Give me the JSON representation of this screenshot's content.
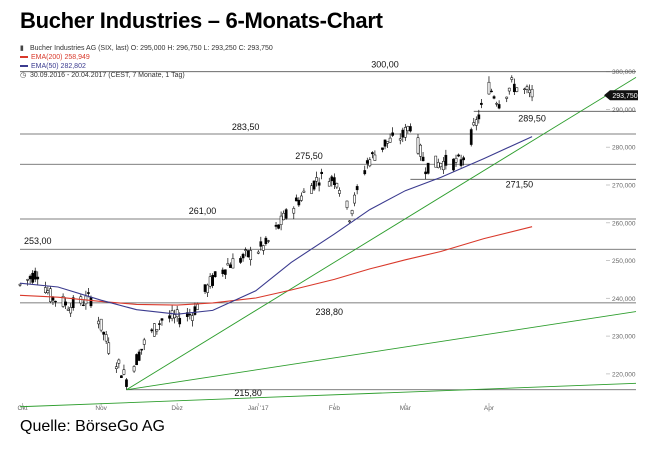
{
  "title": "Bucher Industries – 6-Monats-Chart",
  "source": "Quelle: BörseGo AG",
  "legend": {
    "instrument": "Bucher Industries AG (SIX, last)  O: 295,000  H: 296,750  L: 293,250  C: 293,750",
    "ema200": "EMA(200)  258,949",
    "ema50": "EMA(50)  282,802",
    "period": "30.09.2016 - 20.04.2017   (CEST, 7 Monate, 1 Tag)"
  },
  "colors": {
    "candle": "#000000",
    "ema200": "#d9392b",
    "ema50": "#3b3b8f",
    "trend": "#2e9e2e",
    "level": "#555555",
    "axis_text": "#666666"
  },
  "icons": {
    "instrument": "candles-icon",
    "period": "clock-icon"
  },
  "chart_data": {
    "type": "candlestick",
    "title": "Bucher Industries – 6-Monats-Chart",
    "y_axis": {
      "ticks": [
        220000,
        230000,
        240000,
        250000,
        260000,
        270000,
        280000,
        290000,
        300000
      ],
      "tick_labels": [
        "220,000",
        "230,000",
        "240,000",
        "250,000",
        "260,000",
        "270,000",
        "280,000",
        "290,000",
        "300,000"
      ],
      "range": [
        211500,
        301500
      ],
      "position": "right"
    },
    "x_axis": {
      "labels": [
        "Okt",
        "Nov",
        "Dez",
        "Jan '17",
        "Feb",
        "Mär",
        "Apr"
      ],
      "label_dates": [
        "2016-10-01",
        "2016-11-01",
        "2016-12-01",
        "2017-01-02",
        "2017-02-01",
        "2017-03-01",
        "2017-04-03"
      ],
      "range": [
        "2016-09-30",
        "2017-05-31"
      ]
    },
    "current_price": {
      "value": 293750,
      "label": "293,750"
    },
    "levels": [
      {
        "value": 300000,
        "label": "300,00"
      },
      {
        "value": 289500,
        "label": "289,50"
      },
      {
        "value": 283500,
        "label": "283,50"
      },
      {
        "value": 275500,
        "label": "275,50"
      },
      {
        "value": 271500,
        "label": "271,50"
      },
      {
        "value": 261000,
        "label": "261,00"
      },
      {
        "value": 253000,
        "label": "253,00"
      },
      {
        "value": 238800,
        "label": "238,80"
      },
      {
        "value": 215800,
        "label": "215,80"
      }
    ],
    "trendlines": [
      {
        "from": {
          "date": "2016-11-11",
          "value": 215800
        },
        "to": {
          "date": "2017-05-31",
          "value": 298500
        }
      },
      {
        "from": {
          "date": "2016-11-11",
          "value": 215800
        },
        "to": {
          "date": "2017-05-31",
          "value": 236500
        }
      },
      {
        "from": {
          "date": "2016-09-30",
          "value": 211300
        },
        "to": {
          "date": "2017-05-31",
          "value": 217500
        }
      }
    ],
    "series": [
      {
        "name": "EMA(200)",
        "last_label": "258,949",
        "points": [
          [
            "2016-09-30",
            240800
          ],
          [
            "2016-10-15",
            240300
          ],
          [
            "2016-11-01",
            239200
          ],
          [
            "2016-11-15",
            238400
          ],
          [
            "2016-12-01",
            238200
          ],
          [
            "2016-12-15",
            238800
          ],
          [
            "2017-01-01",
            240100
          ],
          [
            "2017-01-15",
            242200
          ],
          [
            "2017-02-01",
            245000
          ],
          [
            "2017-02-15",
            247800
          ],
          [
            "2017-03-01",
            250200
          ],
          [
            "2017-03-15",
            252400
          ],
          [
            "2017-04-01",
            255800
          ],
          [
            "2017-04-20",
            258949
          ]
        ]
      },
      {
        "name": "EMA(50)",
        "last_label": "282,802",
        "points": [
          [
            "2016-09-30",
            244000
          ],
          [
            "2016-10-15",
            243000
          ],
          [
            "2016-11-01",
            239500
          ],
          [
            "2016-11-15",
            237000
          ],
          [
            "2016-12-01",
            235800
          ],
          [
            "2016-12-15",
            236800
          ],
          [
            "2017-01-01",
            242000
          ],
          [
            "2017-01-15",
            249500
          ],
          [
            "2017-02-01",
            257000
          ],
          [
            "2017-02-15",
            263500
          ],
          [
            "2017-03-01",
            268500
          ],
          [
            "2017-03-15",
            272000
          ],
          [
            "2017-04-01",
            277000
          ],
          [
            "2017-04-20",
            282802
          ]
        ]
      }
    ],
    "price_path": [
      [
        "2016-09-30",
        243500
      ],
      [
        "2016-10-07",
        247000
      ],
      [
        "2016-10-12",
        240500
      ],
      [
        "2016-10-20",
        238000
      ],
      [
        "2016-10-28",
        240000
      ],
      [
        "2016-11-04",
        227000
      ],
      [
        "2016-11-11",
        218500
      ],
      [
        "2016-11-18",
        228000
      ],
      [
        "2016-11-25",
        234500
      ],
      [
        "2016-12-02",
        235000
      ],
      [
        "2016-12-07",
        236000
      ],
      [
        "2016-12-14",
        244000
      ],
      [
        "2016-12-21",
        249000
      ],
      [
        "2016-12-28",
        251000
      ],
      [
        "2017-01-05",
        254000
      ],
      [
        "2017-01-12",
        261000
      ],
      [
        "2017-01-19",
        267000
      ],
      [
        "2017-01-26",
        272000
      ],
      [
        "2017-02-02",
        271500
      ],
      [
        "2017-02-07",
        262000
      ],
      [
        "2017-02-14",
        276000
      ],
      [
        "2017-02-21",
        281000
      ],
      [
        "2017-02-28",
        283000
      ],
      [
        "2017-03-03",
        286000
      ],
      [
        "2017-03-09",
        275000
      ],
      [
        "2017-03-16",
        276000
      ],
      [
        "2017-03-23",
        276000
      ],
      [
        "2017-03-28",
        284500
      ],
      [
        "2017-04-03",
        296000
      ],
      [
        "2017-04-07",
        292000
      ],
      [
        "2017-04-12",
        296500
      ],
      [
        "2017-04-20",
        293750
      ]
    ]
  }
}
